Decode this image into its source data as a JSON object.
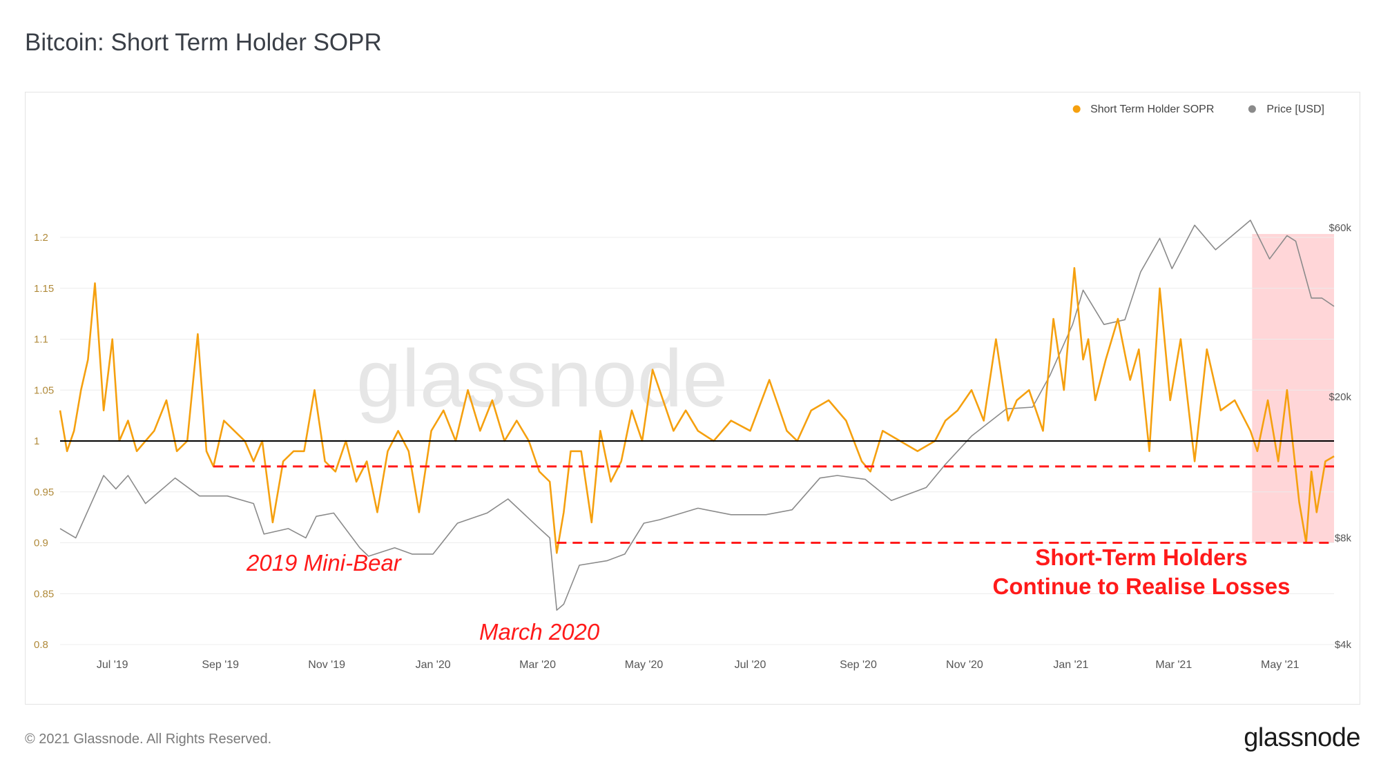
{
  "title": "Bitcoin: Short Term Holder SOPR",
  "footer": {
    "copyright": "© 2021 Glassnode. All Rights Reserved.",
    "logo": "glassnode"
  },
  "watermark": "glassnode",
  "colors": {
    "sopr": "#f5a00f",
    "price": "#8a8a8a",
    "baseline": "#000000",
    "annotation": "#ff1a1a",
    "highlight": "#ffd2d4",
    "grid": "#ececec",
    "tick": "#555555",
    "left_tick": "#b08a3a"
  },
  "legend": [
    {
      "label": "Short Term Holder SOPR",
      "color": "#f5a00f"
    },
    {
      "label": "Price [USD]",
      "color": "#8a8a8a"
    }
  ],
  "annotations": {
    "mini_bear": "2019 Mini-Bear",
    "march_2020": "March 2020",
    "losses_line1": "Short-Term Holders",
    "losses_line2": "Continue to Realise Losses"
  },
  "chart_data": {
    "type": "line",
    "title": "Bitcoin: Short Term Holder SOPR",
    "x_range": [
      "2019-06-01",
      "2021-06-01"
    ],
    "x_ticks": [
      "Jul '19",
      "Sep '19",
      "Nov '19",
      "Jan '20",
      "Mar '20",
      "May '20",
      "Jul '20",
      "Sep '20",
      "Nov '20",
      "Jan '21",
      "Mar '21",
      "May '21"
    ],
    "y_left": {
      "ticks": [
        "0.8",
        "0.85",
        "0.9",
        "0.95",
        "1",
        "1.05",
        "1.1",
        "1.15",
        "1.2"
      ],
      "range": [
        0.8,
        1.2
      ],
      "label": ""
    },
    "y_right": {
      "ticks": [
        "$4k",
        "$8k",
        "$20k",
        "$60k"
      ],
      "scale": "log",
      "range_usd": [
        4000,
        60000
      ],
      "label": ""
    },
    "grid": true,
    "legend_position": "top-right",
    "reference_lines": [
      {
        "value": 1.0,
        "style": "solid",
        "color": "#000000"
      },
      {
        "value": 0.975,
        "style": "dashed",
        "color": "#ff1a1a",
        "from": "2019-08-28",
        "to": "2021-06-01"
      },
      {
        "value": 0.9,
        "style": "dashed",
        "color": "#ff1a1a",
        "from": "2020-03-12",
        "to": "2021-06-01"
      }
    ],
    "highlight_region": {
      "from": "2021-04-15",
      "to": "2021-06-01",
      "color": "#ffd2d4"
    },
    "series": [
      {
        "name": "Short Term Holder SOPR",
        "axis": "left",
        "x": [
          "2019-06-01",
          "2019-06-05",
          "2019-06-09",
          "2019-06-13",
          "2019-06-17",
          "2019-06-21",
          "2019-06-26",
          "2019-07-01",
          "2019-07-05",
          "2019-07-10",
          "2019-07-15",
          "2019-07-20",
          "2019-07-25",
          "2019-08-01",
          "2019-08-07",
          "2019-08-13",
          "2019-08-19",
          "2019-08-24",
          "2019-08-28",
          "2019-09-03",
          "2019-09-09",
          "2019-09-15",
          "2019-09-20",
          "2019-09-25",
          "2019-10-01",
          "2019-10-07",
          "2019-10-13",
          "2019-10-19",
          "2019-10-25",
          "2019-10-31",
          "2019-11-06",
          "2019-11-12",
          "2019-11-18",
          "2019-11-24",
          "2019-11-30",
          "2019-12-06",
          "2019-12-12",
          "2019-12-18",
          "2019-12-24",
          "2019-12-31",
          "2020-01-07",
          "2020-01-14",
          "2020-01-21",
          "2020-01-28",
          "2020-02-04",
          "2020-02-11",
          "2020-02-18",
          "2020-02-25",
          "2020-03-02",
          "2020-03-08",
          "2020-03-12",
          "2020-03-16",
          "2020-03-20",
          "2020-03-26",
          "2020-04-01",
          "2020-04-06",
          "2020-04-12",
          "2020-04-18",
          "2020-04-24",
          "2020-04-30",
          "2020-05-06",
          "2020-05-12",
          "2020-05-18",
          "2020-05-25",
          "2020-06-01",
          "2020-06-10",
          "2020-06-20",
          "2020-07-01",
          "2020-07-12",
          "2020-07-22",
          "2020-07-28",
          "2020-08-05",
          "2020-08-15",
          "2020-08-25",
          "2020-09-03",
          "2020-09-08",
          "2020-09-15",
          "2020-09-25",
          "2020-10-05",
          "2020-10-15",
          "2020-10-21",
          "2020-10-28",
          "2020-11-05",
          "2020-11-12",
          "2020-11-19",
          "2020-11-26",
          "2020-12-01",
          "2020-12-08",
          "2020-12-16",
          "2020-12-22",
          "2020-12-28",
          "2021-01-03",
          "2021-01-08",
          "2021-01-11",
          "2021-01-15",
          "2021-01-21",
          "2021-01-28",
          "2021-02-04",
          "2021-02-09",
          "2021-02-15",
          "2021-02-21",
          "2021-02-27",
          "2021-03-05",
          "2021-03-13",
          "2021-03-20",
          "2021-03-28",
          "2021-04-05",
          "2021-04-14",
          "2021-04-18",
          "2021-04-24",
          "2021-04-30",
          "2021-05-05",
          "2021-05-12",
          "2021-05-16",
          "2021-05-19",
          "2021-05-22",
          "2021-05-27",
          "2021-06-01"
        ],
        "values": [
          1.03,
          0.99,
          1.01,
          1.05,
          1.08,
          1.155,
          1.03,
          1.1,
          1.0,
          1.02,
          0.99,
          1.0,
          1.01,
          1.04,
          0.99,
          1.0,
          1.105,
          0.99,
          0.975,
          1.02,
          1.01,
          1.0,
          0.98,
          1.0,
          0.92,
          0.98,
          0.99,
          0.99,
          1.05,
          0.98,
          0.97,
          1.0,
          0.96,
          0.98,
          0.93,
          0.99,
          1.01,
          0.99,
          0.93,
          1.01,
          1.03,
          1.0,
          1.05,
          1.01,
          1.04,
          1.0,
          1.02,
          1.0,
          0.97,
          0.96,
          0.89,
          0.93,
          0.99,
          0.99,
          0.92,
          1.01,
          0.96,
          0.98,
          1.03,
          1.0,
          1.07,
          1.04,
          1.01,
          1.03,
          1.01,
          1.0,
          1.02,
          1.01,
          1.06,
          1.01,
          1.0,
          1.03,
          1.04,
          1.02,
          0.98,
          0.97,
          1.01,
          1.0,
          0.99,
          1.0,
          1.02,
          1.03,
          1.05,
          1.02,
          1.1,
          1.02,
          1.04,
          1.05,
          1.01,
          1.12,
          1.05,
          1.17,
          1.08,
          1.1,
          1.04,
          1.08,
          1.12,
          1.06,
          1.09,
          0.99,
          1.15,
          1.04,
          1.1,
          0.98,
          1.09,
          1.03,
          1.04,
          1.01,
          0.99,
          1.04,
          0.98,
          1.05,
          0.94,
          0.9,
          0.97,
          0.93,
          0.98,
          0.985
        ]
      },
      {
        "name": "Price [USD]",
        "axis": "right",
        "x": [
          "2019-06-01",
          "2019-06-10",
          "2019-06-26",
          "2019-07-03",
          "2019-07-10",
          "2019-07-20",
          "2019-08-06",
          "2019-08-20",
          "2019-09-05",
          "2019-09-20",
          "2019-09-26",
          "2019-10-10",
          "2019-10-20",
          "2019-10-26",
          "2019-11-05",
          "2019-11-20",
          "2019-11-25",
          "2019-12-10",
          "2019-12-20",
          "2020-01-01",
          "2020-01-15",
          "2020-02-01",
          "2020-02-13",
          "2020-03-01",
          "2020-03-08",
          "2020-03-12",
          "2020-03-16",
          "2020-03-25",
          "2020-04-10",
          "2020-04-20",
          "2020-05-01",
          "2020-05-10",
          "2020-06-01",
          "2020-06-20",
          "2020-07-10",
          "2020-07-25",
          "2020-08-10",
          "2020-08-20",
          "2020-09-05",
          "2020-09-20",
          "2020-10-10",
          "2020-10-21",
          "2020-11-05",
          "2020-11-25",
          "2020-12-10",
          "2020-12-20",
          "2021-01-02",
          "2021-01-08",
          "2021-01-20",
          "2021-02-01",
          "2021-02-10",
          "2021-02-21",
          "2021-02-28",
          "2021-03-13",
          "2021-03-25",
          "2021-04-14",
          "2021-04-25",
          "2021-05-05",
          "2021-05-10",
          "2021-05-19",
          "2021-05-25",
          "2021-06-01"
        ],
        "values": [
          8500,
          8000,
          12000,
          11000,
          12000,
          10000,
          11800,
          10500,
          10500,
          10000,
          8200,
          8500,
          8000,
          9200,
          9400,
          7500,
          7100,
          7500,
          7200,
          7200,
          8800,
          9400,
          10300,
          8600,
          8000,
          5000,
          5200,
          6700,
          6900,
          7200,
          8800,
          9000,
          9700,
          9300,
          9300,
          9600,
          11800,
          12000,
          11700,
          10200,
          11100,
          12900,
          15500,
          18500,
          18700,
          23000,
          32000,
          40000,
          32000,
          33000,
          45000,
          56000,
          46000,
          61000,
          52000,
          63000,
          49000,
          57000,
          55000,
          38000,
          38000,
          36000
        ]
      }
    ]
  }
}
